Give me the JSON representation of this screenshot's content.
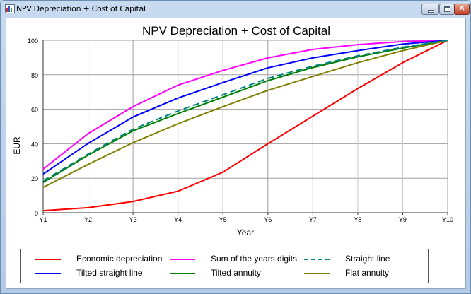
{
  "window": {
    "title": "NPV Depreciation + Cost of Capital",
    "buttons": {
      "minimize": "minimize",
      "maximize": "maximize",
      "close": "✕"
    }
  },
  "chart_data": {
    "type": "line",
    "title": "NPV Depreciation + Cost of Capital",
    "xlabel": "Year",
    "ylabel": "EUR",
    "ylim": [
      0,
      100
    ],
    "yticks": [
      0,
      20,
      40,
      60,
      80,
      100
    ],
    "grid": true,
    "legend_position": "bottom",
    "categories": [
      "Y1",
      "Y2",
      "Y3",
      "Y4",
      "Y5",
      "Y6",
      "Y7",
      "Y8",
      "Y9",
      "Y10"
    ],
    "series": [
      {
        "name": "Economic depreciation",
        "color": "#ff0000",
        "dash": false,
        "values": [
          1.2,
          2.9,
          6.5,
          12.5,
          23.5,
          40,
          56,
          72,
          87,
          100
        ]
      },
      {
        "name": "Sum of the years digits",
        "color": "#ff00ff",
        "dash": false,
        "values": [
          25.3,
          45.9,
          61.5,
          74,
          82.5,
          89.8,
          94.7,
          97.5,
          99.3,
          100
        ]
      },
      {
        "name": "Straight line",
        "color": "#008080",
        "dash": true,
        "values": [
          18.4,
          34,
          48.5,
          59,
          68.4,
          77.9,
          85,
          91,
          96,
          100
        ]
      },
      {
        "name": "Tilted straight line",
        "color": "#0000ff",
        "dash": false,
        "values": [
          22.4,
          40.2,
          55.5,
          66.5,
          75.5,
          84,
          89.8,
          94,
          97.8,
          100
        ]
      },
      {
        "name": "Tilted annuity",
        "color": "#008000",
        "dash": false,
        "values": [
          17.6,
          33.4,
          47.5,
          57.5,
          67,
          76.6,
          84.2,
          90.4,
          95.5,
          100
        ]
      },
      {
        "name": "Flat annuity",
        "color": "#808000",
        "dash": false,
        "values": [
          14.7,
          28,
          40.6,
          51.6,
          61.5,
          71,
          79,
          87,
          94,
          100
        ]
      }
    ]
  }
}
